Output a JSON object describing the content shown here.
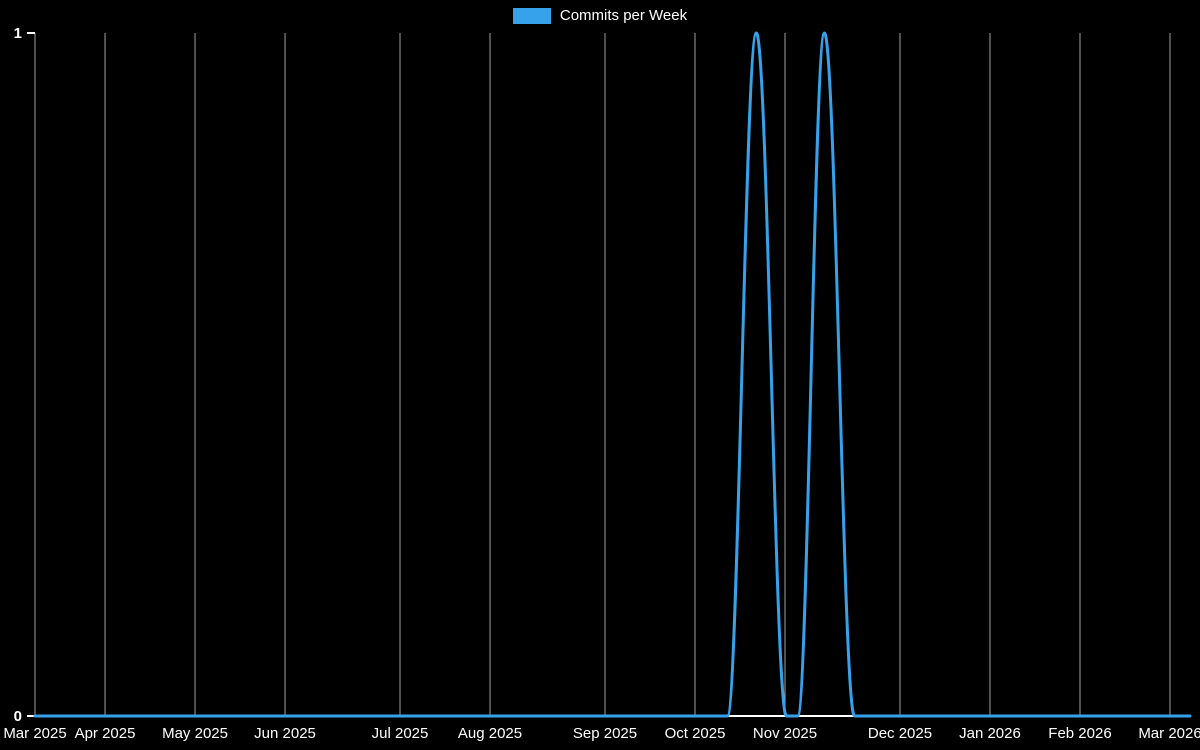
{
  "chart_data": {
    "type": "line",
    "title": "Commits per Week",
    "background": "#000000",
    "legend": {
      "position": "top",
      "items": [
        {
          "label": "Commits per Week",
          "color": "#36a2eb"
        }
      ]
    },
    "ylim": [
      0,
      1
    ],
    "y_ticks": [
      {
        "label": "0",
        "value": 0
      },
      {
        "label": "1",
        "value": 1
      }
    ],
    "x_ticks": [
      {
        "label": "Mar 2025",
        "pos": 0.0
      },
      {
        "label": "Apr 2025",
        "pos": 0.0617
      },
      {
        "label": "May 2025",
        "pos": 0.141
      },
      {
        "label": "Jun 2025",
        "pos": 0.2203
      },
      {
        "label": "Jul 2025",
        "pos": 0.3216
      },
      {
        "label": "Aug 2025",
        "pos": 0.4009
      },
      {
        "label": "Sep 2025",
        "pos": 0.5022
      },
      {
        "label": "Oct 2025",
        "pos": 0.5815
      },
      {
        "label": "Nov 2025",
        "pos": 0.6608
      },
      {
        "label": "Dec 2025",
        "pos": 0.7621
      },
      {
        "label": "Jan 2026",
        "pos": 0.8414
      },
      {
        "label": "Feb 2026",
        "pos": 0.9207
      },
      {
        "label": "Mar 2026",
        "pos": 1.0
      }
    ],
    "grid": {
      "vertical": true,
      "horizontal": false
    },
    "series": [
      {
        "name": "Commits per Week",
        "color": "#36a2eb",
        "points": [
          {
            "pos": 0.0,
            "value": 0,
            "approx_week": "2025-03-01"
          },
          {
            "pos": 0.61,
            "value": 0,
            "approx_week": "2025-10-12"
          },
          {
            "pos": 0.6355,
            "value": 1,
            "approx_week": "2025-10-19"
          },
          {
            "pos": 0.662,
            "value": 0,
            "approx_week": "2025-10-26"
          },
          {
            "pos": 0.672,
            "value": 0,
            "approx_week": "2025-11-02"
          },
          {
            "pos": 0.6955,
            "value": 1,
            "approx_week": "2025-11-09"
          },
          {
            "pos": 0.722,
            "value": 0,
            "approx_week": "2025-11-16"
          },
          {
            "pos": 1.0176,
            "value": 0,
            "approx_week": "2026-03-07"
          }
        ]
      }
    ],
    "colors": {
      "grid": "#a0a0a0",
      "axis": "#ffffff",
      "text": "#ffffff"
    }
  }
}
